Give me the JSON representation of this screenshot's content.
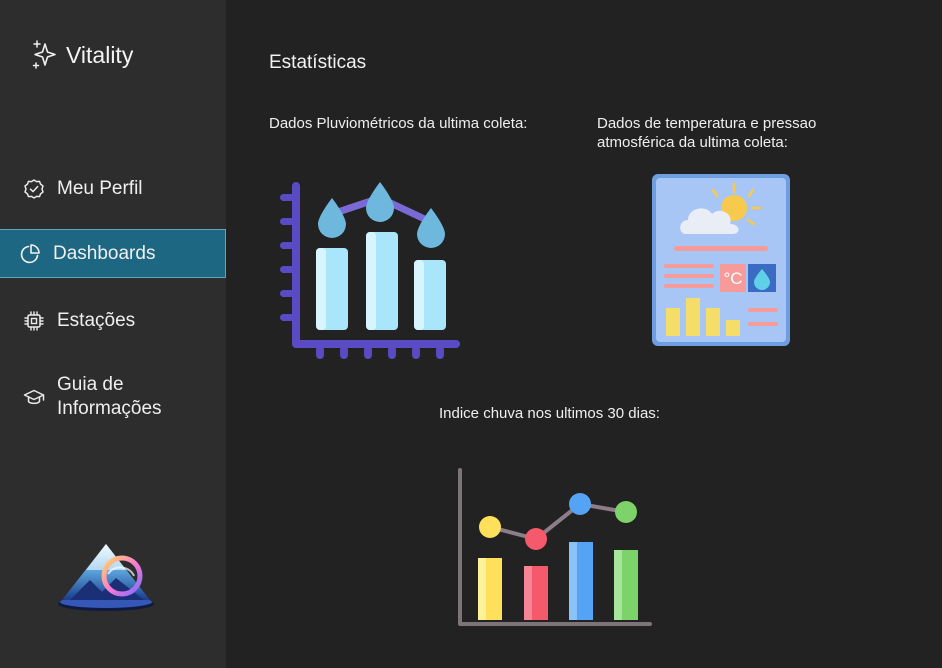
{
  "app": {
    "name": "Vitality"
  },
  "sidebar": {
    "items": [
      {
        "label": "Meu Perfil",
        "icon": "check-badge-icon",
        "active": false
      },
      {
        "label": "Dashboards",
        "icon": "pie-chart-icon",
        "active": true
      },
      {
        "label": "Estações",
        "icon": "chip-icon",
        "active": false
      },
      {
        "label": "Guia de Informações",
        "icon": "graduation-cap-icon",
        "active": false
      }
    ]
  },
  "main": {
    "title": "Estatísticas",
    "cards": [
      {
        "caption": "Dados Pluviométricos da ultima coleta:",
        "illustration": "rain-chart-icon"
      },
      {
        "caption": "Dados de temperatura e pressao atmosférica da ultima coleta:",
        "illustration": "weather-report-icon"
      },
      {
        "caption": "Indice chuva nos ultimos 30 dias:",
        "illustration": "line-bar-chart-icon"
      }
    ]
  },
  "colors": {
    "sidebar_bg": "#2d2d2d",
    "main_bg": "#222222",
    "active_item": "#1d6782"
  }
}
